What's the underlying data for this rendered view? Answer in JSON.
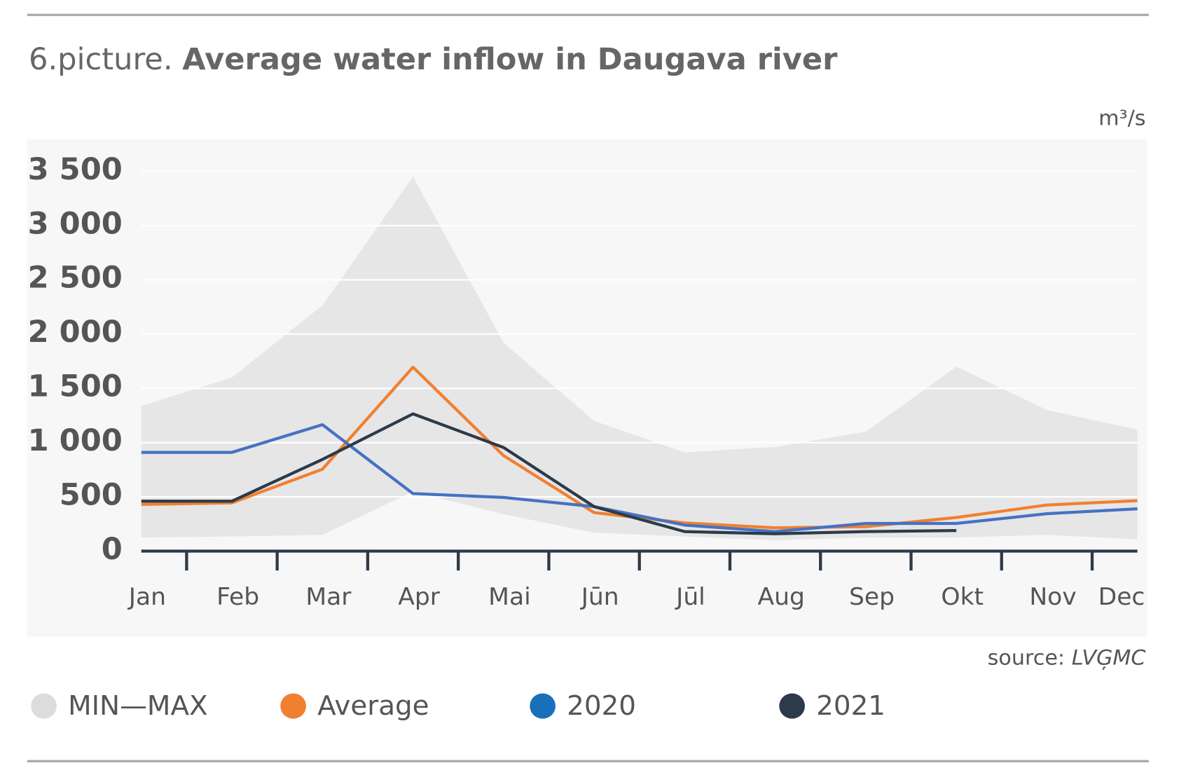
{
  "chart_data": {
    "type": "line",
    "title_prefix": "6.picture.",
    "title": "Average water inflow in Daugava river",
    "unit": "m³/s",
    "source_label": "source:",
    "source_name": "LVĢMC",
    "categories": [
      "Jan",
      "Feb",
      "Mar",
      "Apr",
      "Mai",
      "Jūn",
      "Jūl",
      "Aug",
      "Sep",
      "Okt",
      "Nov",
      "Dec"
    ],
    "band": {
      "name": "MIN—MAX",
      "color": "#e6e6e6",
      "legend_color": "#dcdcdc",
      "max": [
        1338,
        1600,
        2265,
        3450,
        1920,
        1200,
        910,
        960,
        1100,
        1700,
        1300,
        1120
      ],
      "min": [
        125,
        135,
        150,
        550,
        340,
        170,
        135,
        100,
        125,
        125,
        150,
        110
      ]
    },
    "series": [
      {
        "name": "Average",
        "color": "#f08030",
        "values": [
          430,
          445,
          755,
          1695,
          880,
          355,
          260,
          215,
          225,
          310,
          425,
          465
        ]
      },
      {
        "name": "2020",
        "color": "#4472c4",
        "legend_color": "#1a6fba",
        "values": [
          910,
          910,
          1165,
          530,
          495,
          410,
          240,
          180,
          255,
          255,
          345,
          390
        ]
      },
      {
        "name": "2021",
        "color": "#2d3a4a",
        "values": [
          460,
          460,
          845,
          1265,
          955,
          410,
          180,
          160,
          180,
          190,
          null,
          null
        ]
      }
    ],
    "ylim": [
      0,
      3500
    ],
    "yticks": [
      0,
      500,
      {
        "value": 1000,
        "label": "1 000"
      },
      {
        "value": 1500,
        "label": "1 500"
      },
      {
        "value": 2000,
        "label": "2 000"
      },
      {
        "value": 2500,
        "label": "2 500"
      },
      {
        "value": 3000,
        "label": "3 000"
      },
      {
        "value": 3500,
        "label": "3 500"
      }
    ],
    "grid": true
  }
}
